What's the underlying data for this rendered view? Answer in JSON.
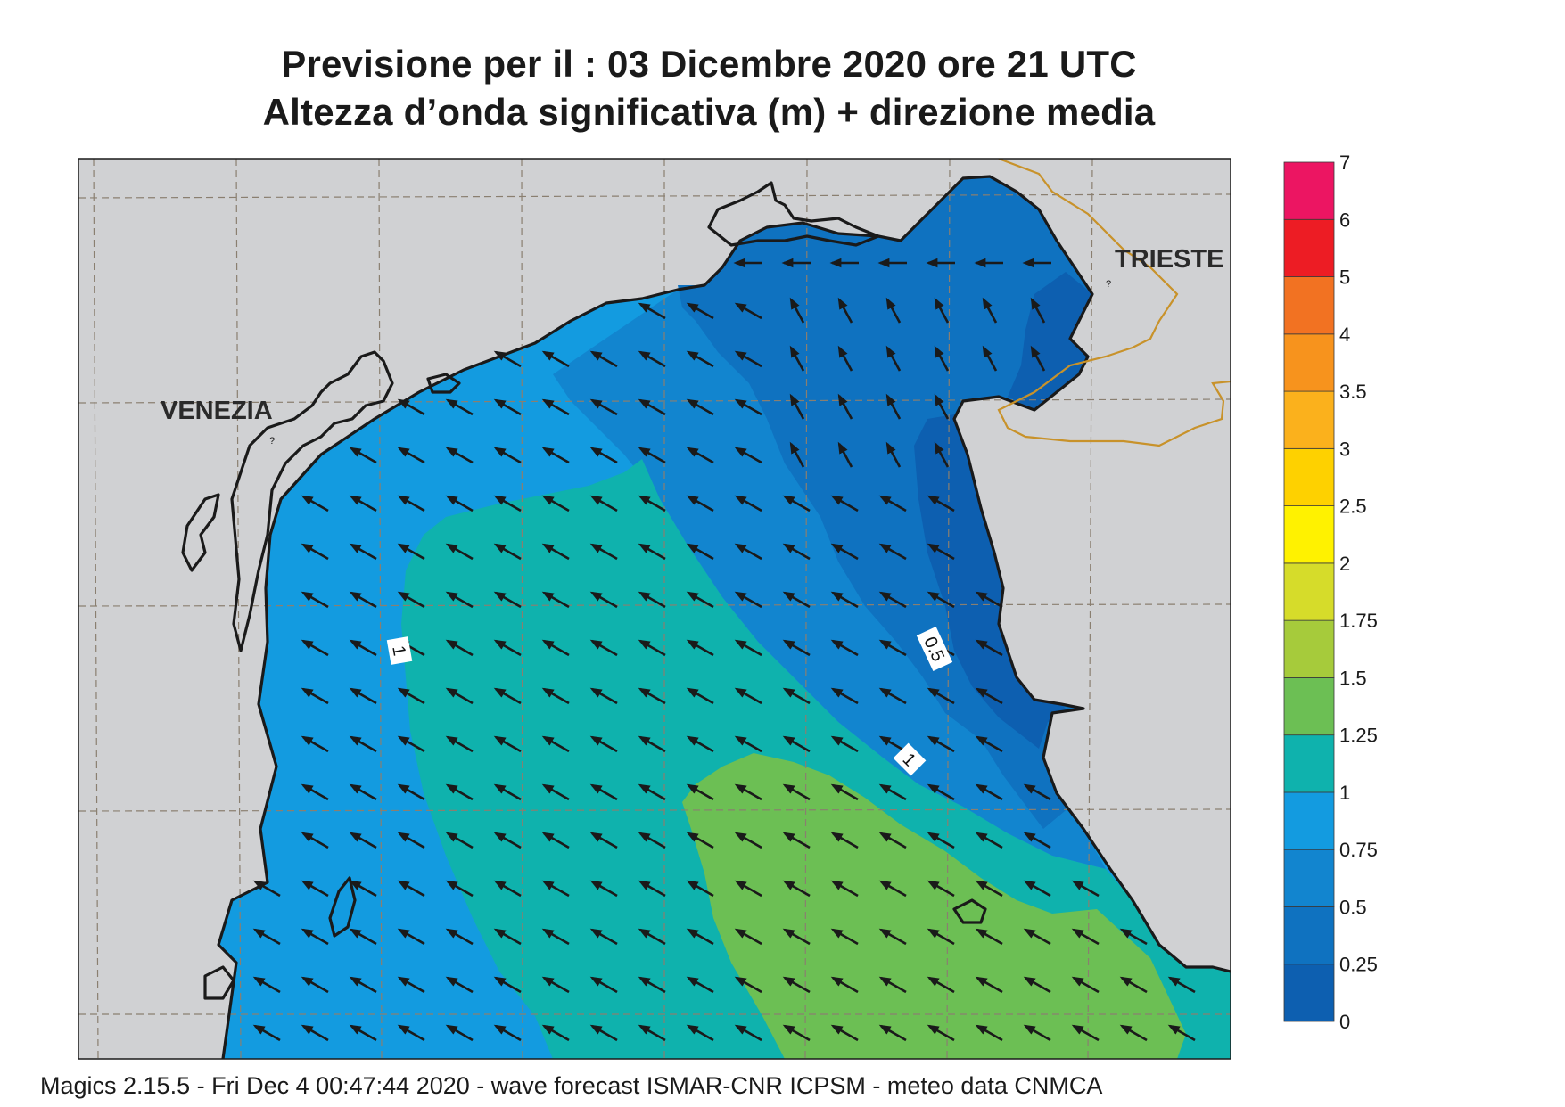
{
  "title": {
    "line1": "Previsione per il  :  03 Dicembre  2020   ore 21 UTC",
    "line2": "Altezza d’onda significativa (m) + direzione media"
  },
  "map": {
    "place_labels": [
      "VENEZIA",
      "TRIESTE"
    ],
    "contour_labels": [
      "1",
      "0.5",
      "1"
    ],
    "arrow_direction": "north-west",
    "land_color": "#d0d1d3",
    "coast_color": "#1a1a1a",
    "border_color": "#c8922a",
    "grid_color": "#8a7f70"
  },
  "colorbar": {
    "labels": [
      "0",
      "0.25",
      "0.5",
      "0.75",
      "1",
      "1.25",
      "1.5",
      "1.75",
      "2",
      "2.5",
      "3",
      "3.5",
      "4",
      "5",
      "6",
      "7"
    ],
    "colors": [
      "#0d5fb0",
      "#0f72c0",
      "#1285cf",
      "#139be0",
      "#0fb2ad",
      "#6cbf54",
      "#a6cb3b",
      "#d6dc2a",
      "#fff200",
      "#fed100",
      "#fbb11c",
      "#f7931d",
      "#f27222",
      "#ed1c24",
      "#ec1562"
    ]
  },
  "footer": "Magics 2.15.5 - Fri Dec  4 00:47:44 2020 - wave forecast  ISMAR-CNR  ICPSM - meteo data   CNMCA"
}
